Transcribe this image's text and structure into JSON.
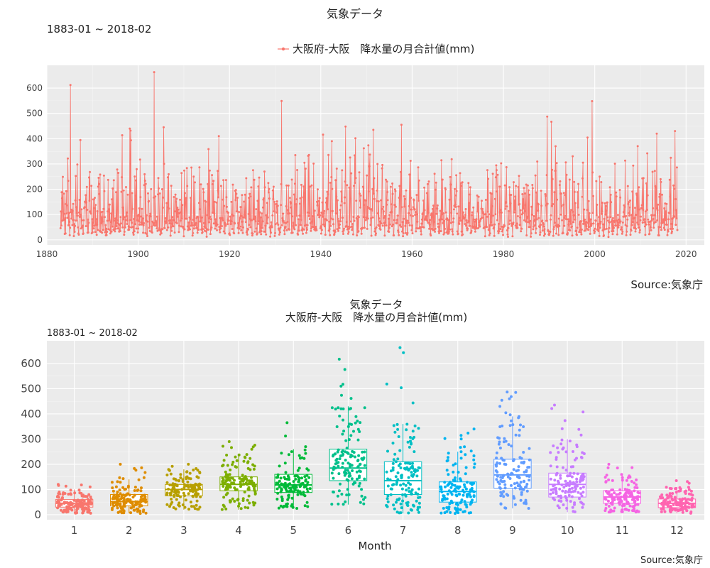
{
  "chart_data": [
    {
      "type": "line",
      "title": "気象データ",
      "subtitle": "1883-01 ~ 2018-02",
      "legend": {
        "label": "大阪府-大阪　降水量の月合計値(mm)",
        "position": "top",
        "color": "#F8766D"
      },
      "source": "Source:気象庁",
      "xlim": [
        1880,
        2024
      ],
      "ylim": [
        -20,
        690
      ],
      "x_ticks": [
        1880,
        1900,
        1920,
        1940,
        1960,
        1980,
        2000,
        2020
      ],
      "y_ticks": [
        0,
        100,
        200,
        300,
        400,
        500,
        600
      ],
      "grid": true,
      "start": "1883-01",
      "end": "2018-02",
      "peaks": [
        {
          "x": 1885.2,
          "y": 612
        },
        {
          "x": 1903.5,
          "y": 663
        },
        {
          "x": 1898.2,
          "y": 440
        },
        {
          "x": 1905.6,
          "y": 445
        },
        {
          "x": 1951.5,
          "y": 435
        },
        {
          "x": 1989.6,
          "y": 487
        },
        {
          "x": 1990.5,
          "y": 467
        },
        {
          "x": 2017.6,
          "y": 430
        },
        {
          "x": 2013.6,
          "y": 420
        }
      ]
    },
    {
      "type": "box",
      "title": "気象データ",
      "subtitle_line": "大阪府-大阪　降水量の月合計値(mm)",
      "date_range": "1883-01 ~ 2018-02",
      "xlabel": "Month",
      "source": "Source:気象庁",
      "ylim": [
        -20,
        690
      ],
      "y_ticks": [
        0,
        100,
        200,
        300,
        400,
        500,
        600
      ],
      "categories": [
        "1",
        "2",
        "3",
        "4",
        "5",
        "6",
        "7",
        "8",
        "9",
        "10",
        "11",
        "12"
      ],
      "boxes": [
        {
          "month": "1",
          "q1": 30,
          "median": 45,
          "q3": 60,
          "low": 5,
          "high": 100,
          "max": 120,
          "color": "#F8766D"
        },
        {
          "month": "2",
          "q1": 35,
          "median": 52,
          "q3": 80,
          "low": 5,
          "high": 140,
          "max": 200,
          "color": "#DE8C00"
        },
        {
          "month": "3",
          "q1": 75,
          "median": 100,
          "q3": 120,
          "low": 20,
          "high": 180,
          "max": 200,
          "color": "#B79F00"
        },
        {
          "month": "4",
          "q1": 95,
          "median": 120,
          "q3": 150,
          "low": 20,
          "high": 240,
          "max": 290,
          "color": "#7CAE00"
        },
        {
          "month": "5",
          "q1": 88,
          "median": 118,
          "q3": 160,
          "low": 25,
          "high": 260,
          "max": 365,
          "color": "#00BA38"
        },
        {
          "month": "6",
          "q1": 135,
          "median": 185,
          "q3": 260,
          "low": 40,
          "high": 430,
          "max": 617,
          "color": "#00C08B"
        },
        {
          "month": "7",
          "q1": 80,
          "median": 135,
          "q3": 210,
          "low": 5,
          "high": 360,
          "max": 663,
          "color": "#00BFC4"
        },
        {
          "month": "8",
          "q1": 50,
          "median": 92,
          "q3": 130,
          "low": 5,
          "high": 250,
          "max": 340,
          "color": "#00B4F0"
        },
        {
          "month": "9",
          "q1": 105,
          "median": 158,
          "q3": 220,
          "low": 25,
          "high": 390,
          "max": 487,
          "color": "#619CFF"
        },
        {
          "month": "10",
          "q1": 70,
          "median": 120,
          "q3": 165,
          "low": 10,
          "high": 300,
          "max": 435,
          "color": "#C77CFF"
        },
        {
          "month": "11",
          "q1": 45,
          "median": 70,
          "q3": 95,
          "low": 10,
          "high": 160,
          "max": 200,
          "color": "#F564E3"
        },
        {
          "month": "12",
          "q1": 28,
          "median": 45,
          "q3": 62,
          "low": 5,
          "high": 110,
          "max": 135,
          "color": "#FF64B0"
        }
      ]
    }
  ]
}
